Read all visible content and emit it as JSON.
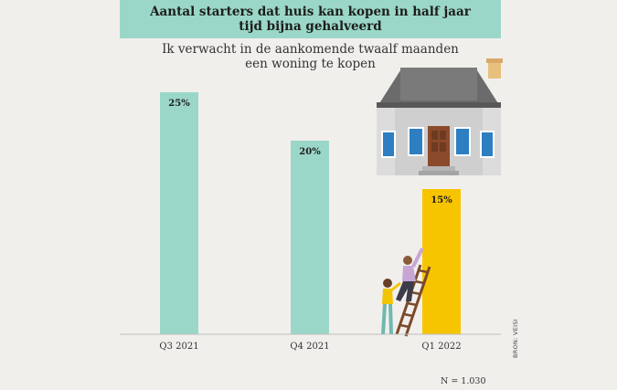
{
  "title": "Aantal starters dat huis kan kopen in half jaar tijd bijna gehalveerd",
  "subtitle_line1": "Ik verwacht in de aankomende twaalf maanden",
  "subtitle_line2": "een woning te kopen",
  "note": "N = 1.030",
  "source": "BRON: VEISI",
  "colors": {
    "teal": "#9ad7c8",
    "yellow": "#f7c500",
    "background": "#f1efec"
  },
  "chart_data": {
    "type": "bar",
    "categories": [
      "Q3 2021",
      "Q4 2021",
      "Q1 2022"
    ],
    "values": [
      25,
      20,
      15
    ],
    "value_labels": [
      "25%",
      "20%",
      "15%"
    ],
    "bar_colors": [
      "#9ad7c8",
      "#9ad7c8",
      "#f7c500"
    ],
    "ylim": [
      0,
      25
    ],
    "grid": false,
    "annotations": [
      "house-illustration",
      "people-climbing-ladder-illustration"
    ]
  }
}
